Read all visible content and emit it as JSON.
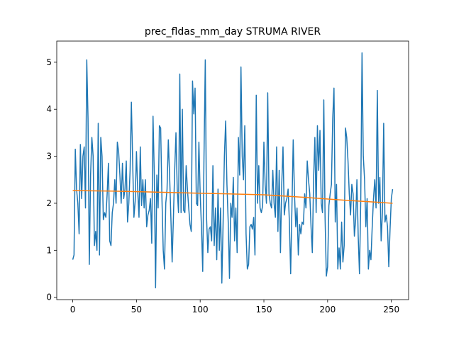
{
  "chart_data": {
    "type": "line",
    "title": "prec_fldas_mm_day STRUMA RIVER",
    "x": [
      0,
      1,
      2,
      3,
      4,
      5,
      6,
      7,
      8,
      9,
      10,
      11,
      12,
      13,
      14,
      15,
      16,
      17,
      18,
      19,
      20,
      21,
      22,
      23,
      24,
      25,
      26,
      27,
      28,
      29,
      30,
      31,
      32,
      33,
      34,
      35,
      36,
      37,
      38,
      39,
      40,
      41,
      42,
      43,
      44,
      45,
      46,
      47,
      48,
      49,
      50,
      51,
      52,
      53,
      54,
      55,
      56,
      57,
      58,
      59,
      60,
      61,
      62,
      63,
      64,
      65,
      66,
      67,
      68,
      69,
      70,
      71,
      72,
      73,
      74,
      75,
      76,
      77,
      78,
      79,
      80,
      81,
      82,
      83,
      84,
      85,
      86,
      87,
      88,
      89,
      90,
      91,
      92,
      93,
      94,
      95,
      96,
      97,
      98,
      99,
      100,
      101,
      102,
      103,
      104,
      105,
      106,
      107,
      108,
      109,
      110,
      111,
      112,
      113,
      114,
      115,
      116,
      117,
      118,
      119,
      120,
      121,
      122,
      123,
      124,
      125,
      126,
      127,
      128,
      129,
      130,
      131,
      132,
      133,
      134,
      135,
      136,
      137,
      138,
      139,
      140,
      141,
      142,
      143,
      144,
      145,
      146,
      147,
      148,
      149,
      150,
      151,
      152,
      153,
      154,
      155,
      156,
      157,
      158,
      159,
      160,
      161,
      162,
      163,
      164,
      165,
      166,
      167,
      168,
      169,
      170,
      171,
      172,
      173,
      174,
      175,
      176,
      177,
      178,
      179,
      180,
      181,
      182,
      183,
      184,
      185,
      186,
      187,
      188,
      189,
      190,
      191,
      192,
      193,
      194,
      195,
      196,
      197,
      198,
      199,
      200,
      201,
      202,
      203,
      204,
      205,
      206,
      207,
      208,
      209,
      210,
      211,
      212,
      213,
      214,
      215,
      216,
      217,
      218,
      219,
      220,
      221,
      222,
      223,
      224,
      225,
      226,
      227,
      228,
      229,
      230,
      231,
      232,
      233,
      234,
      235,
      236,
      237,
      238,
      239,
      240,
      241,
      242,
      243,
      244,
      245,
      246,
      247,
      248,
      249,
      250,
      251
    ],
    "series": [
      {
        "color": "#1f77b4",
        "values": [
          0.8,
          0.9,
          3.15,
          2.3,
          2.0,
          1.35,
          3.25,
          2.1,
          3.0,
          3.2,
          1.9,
          5.05,
          3.8,
          0.7,
          2.6,
          3.4,
          3.0,
          1.1,
          1.4,
          1.0,
          3.7,
          0.9,
          3.4,
          3.0,
          1.65,
          1.8,
          1.7,
          2.2,
          2.85,
          1.2,
          1.1,
          1.8,
          2.0,
          2.5,
          2.0,
          3.3,
          3.1,
          2.6,
          2.0,
          2.85,
          2.1,
          2.3,
          2.9,
          1.6,
          2.0,
          2.7,
          4.15,
          2.9,
          1.7,
          2.05,
          3.1,
          2.25,
          1.7,
          3.2,
          1.95,
          2.5,
          1.9,
          2.5,
          1.5,
          1.75,
          1.85,
          2.1,
          1.15,
          3.85,
          2.6,
          0.2,
          2.6,
          1.9,
          3.65,
          3.6,
          2.1,
          1.0,
          0.6,
          2.0,
          2.3,
          3.35,
          2.6,
          1.7,
          0.75,
          1.7,
          2.7,
          3.5,
          2.3,
          1.8,
          4.75,
          1.8,
          4.0,
          1.85,
          1.8,
          2.8,
          2.3,
          1.9,
          1.55,
          1.4,
          4.6,
          3.9,
          4.45,
          2.0,
          1.95,
          3.3,
          2.2,
          1.5,
          0.55,
          3.0,
          5.05,
          1.7,
          0.95,
          1.45,
          1.5,
          1.2,
          2.8,
          1.1,
          1.9,
          0.8,
          2.3,
          1.0,
          1.9,
          0.3,
          1.6,
          3.0,
          3.75,
          2.4,
          1.6,
          0.4,
          2.0,
          1.7,
          2.55,
          1.2,
          1.9,
          0.95,
          3.4,
          2.6,
          4.9,
          3.0,
          2.5,
          3.65,
          1.35,
          0.6,
          0.7,
          1.5,
          1.55,
          1.45,
          1.7,
          0.9,
          4.3,
          2.0,
          2.8,
          1.9,
          1.8,
          1.95,
          3.3,
          2.4,
          2.0,
          4.35,
          2.2,
          2.0,
          1.9,
          2.7,
          2.0,
          1.7,
          3.2,
          1.4,
          2.7,
          0.95,
          2.4,
          3.2,
          1.75,
          2.0,
          2.1,
          2.3,
          1.6,
          0.5,
          1.9,
          3.35,
          2.2,
          1.5,
          1.9,
          0.9,
          1.55,
          1.35,
          1.6,
          1.55,
          2.2,
          1.9,
          2.9,
          2.5,
          2.2,
          1.5,
          0.95,
          2.5,
          3.4,
          1.8,
          3.65,
          2.7,
          3.55,
          2.0,
          1.8,
          4.2,
          1.7,
          0.45,
          0.65,
          1.95,
          2.2,
          2.4,
          3.8,
          4.45,
          1.6,
          2.4,
          0.6,
          1.05,
          0.6,
          1.6,
          0.75,
          1.1,
          3.6,
          3.4,
          2.9,
          2.2,
          1.75,
          2.4,
          2.2,
          1.3,
          1.65,
          2.5,
          1.3,
          0.5,
          2.05,
          5.2,
          3.0,
          2.5,
          1.5,
          2.1,
          0.6,
          1.0,
          0.8,
          1.5,
          2.1,
          2.5,
          1.9,
          4.4,
          2.0,
          2.55,
          1.2,
          1.8,
          3.7,
          1.6,
          1.75,
          1.5,
          0.65,
          1.45,
          2.1,
          2.3
        ]
      },
      {
        "color": "#ff7f0e",
        "x": [
          0,
          30,
          60,
          90,
          120,
          150,
          180,
          210,
          240,
          251
        ],
        "values": [
          2.27,
          2.26,
          2.24,
          2.22,
          2.2,
          2.18,
          2.13,
          2.07,
          2.02,
          2.0
        ]
      }
    ],
    "xlim": [
      -12.55,
      263.55
    ],
    "ylim": [
      -0.05,
      5.45
    ],
    "xticks": [
      0,
      50,
      100,
      150,
      200,
      250
    ],
    "yticks": [
      0,
      1,
      2,
      3,
      4,
      5
    ]
  }
}
